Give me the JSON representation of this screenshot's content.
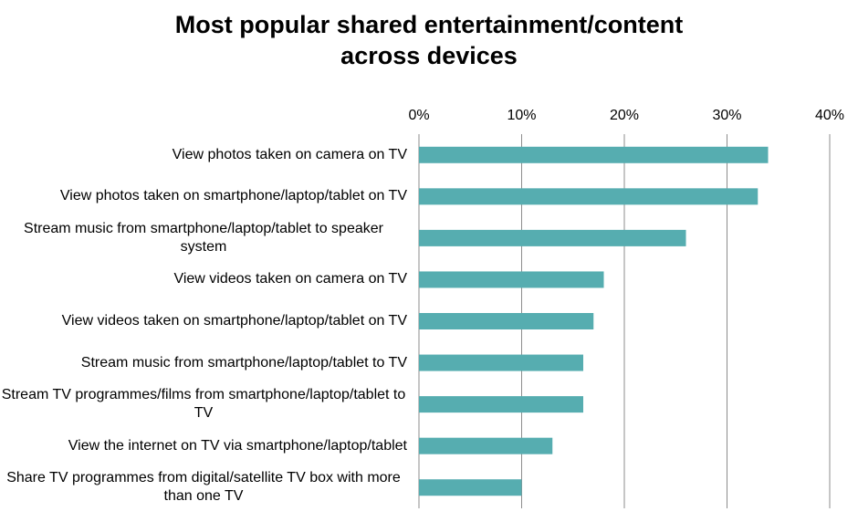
{
  "chart_data": {
    "type": "bar",
    "orientation": "horizontal",
    "title": "Most popular shared entertainment/content across devices",
    "categories": [
      "View photos taken on camera on TV",
      "View photos taken on smartphone/laptop/tablet on TV",
      "Stream music from smartphone/laptop/tablet to speaker system",
      "View videos taken on camera on TV",
      "View videos taken on smartphone/laptop/tablet on TV",
      "Stream music from smartphone/laptop/tablet to TV",
      "Stream TV programmes/films from smartphone/laptop/tablet to TV",
      "View the internet on TV via smartphone/laptop/tablet",
      "Share TV programmes from digital/satellite TV box with more than one TV"
    ],
    "values": [
      34,
      33,
      26,
      18,
      17,
      16,
      16,
      13,
      10
    ],
    "color": "#56adb0",
    "xlim": [
      0,
      40
    ],
    "xticks": [
      {
        "value": 0,
        "label": "0%"
      },
      {
        "value": 10,
        "label": "10%"
      },
      {
        "value": 20,
        "label": "20%"
      },
      {
        "value": 30,
        "label": "30%"
      },
      {
        "value": 40,
        "label": "40%"
      }
    ],
    "grid": true
  }
}
